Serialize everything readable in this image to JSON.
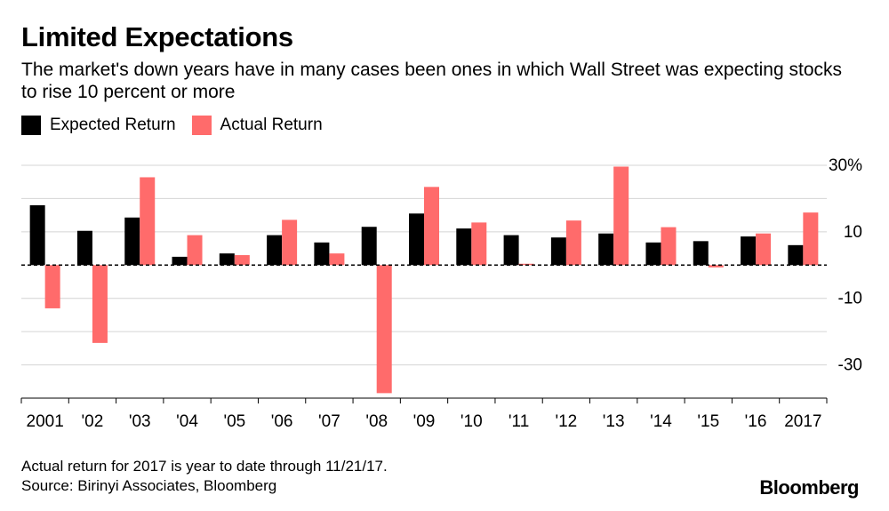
{
  "title": "Limited Expectations",
  "subtitle": "The market's down years have in many cases been ones in which Wall Street was expecting stocks to rise 10 percent or more",
  "legend": [
    {
      "label": "Expected Return",
      "color": "#000000"
    },
    {
      "label": "Actual Return",
      "color": "#ff6b6b"
    }
  ],
  "footnote": "Actual return for 2017 is year to date through 11/21/17.",
  "source": "Source: Birinyi Associates, Bloomberg",
  "brand": "Bloomberg",
  "chart_data": {
    "type": "bar",
    "categories": [
      "2001",
      "'02",
      "'03",
      "'04",
      "'05",
      "'06",
      "'07",
      "'08",
      "'09",
      "'10",
      "'11",
      "'12",
      "'13",
      "'14",
      "'15",
      "'16",
      "2017"
    ],
    "series": [
      {
        "name": "Expected Return",
        "color": "#000000",
        "values": [
          18.0,
          10.3,
          14.3,
          2.5,
          3.5,
          9.0,
          6.8,
          11.5,
          15.5,
          11.0,
          9.0,
          8.3,
          9.5,
          6.8,
          7.2,
          8.6,
          6.0
        ]
      },
      {
        "name": "Actual Return",
        "color": "#ff6b6b",
        "values": [
          -13.0,
          -23.4,
          26.4,
          9.0,
          3.0,
          13.6,
          3.5,
          -38.5,
          23.5,
          12.8,
          0.0,
          13.4,
          29.6,
          11.4,
          -0.7,
          9.5,
          15.8
        ]
      }
    ],
    "yticks": [
      "30%",
      "10",
      "-10",
      "-30"
    ],
    "ytick_values": [
      30,
      10,
      -10,
      -30
    ],
    "ylim": [
      -40,
      30
    ],
    "grid": true,
    "zero_line": "dashed",
    "legend_position": "top-left"
  }
}
